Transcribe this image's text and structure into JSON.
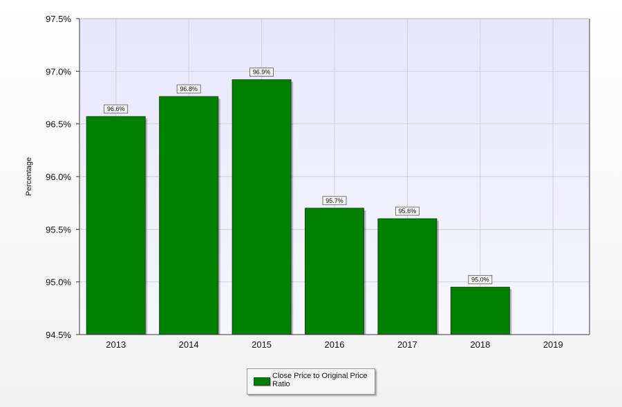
{
  "chart_data": {
    "type": "bar",
    "categories": [
      "2013",
      "2014",
      "2015",
      "2016",
      "2017",
      "2018"
    ],
    "x_ticks": [
      "2013",
      "2014",
      "2015",
      "2016",
      "2017",
      "2018",
      "2019"
    ],
    "series": [
      {
        "name": "Close Price to Original Price Ratio",
        "values": [
          96.57,
          96.76,
          96.92,
          95.7,
          95.6,
          94.95
        ],
        "labels": [
          "96.6%",
          "96.8%",
          "96.9%",
          "95.7%",
          "95.6%",
          "95.0%"
        ],
        "color": "#008000"
      }
    ],
    "ylabel": "Percentage",
    "ylim": [
      94.5,
      97.5
    ],
    "y_ticks": [
      "94.5%",
      "95.0%",
      "95.5%",
      "96.0%",
      "96.5%",
      "97.0%",
      "97.5%"
    ],
    "grid": true,
    "legend_position": "bottom-center",
    "plot_background": "#ececfc"
  }
}
